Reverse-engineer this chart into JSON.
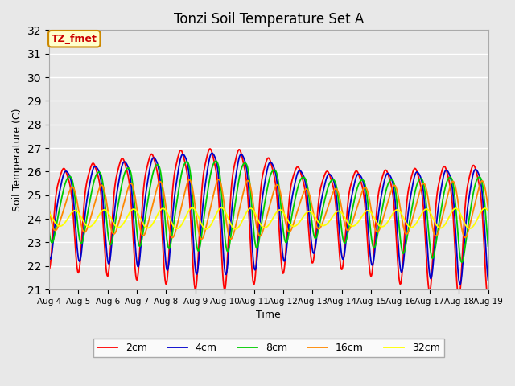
{
  "title": "Tonzi Soil Temperature Set A",
  "xlabel": "Time",
  "ylabel": "Soil Temperature (C)",
  "ylim": [
    21.0,
    32.0
  ],
  "yticks": [
    21.0,
    22.0,
    23.0,
    24.0,
    25.0,
    26.0,
    27.0,
    28.0,
    29.0,
    30.0,
    31.0,
    32.0
  ],
  "xtick_labels": [
    "Aug 4",
    "Aug 5",
    "Aug 6",
    "Aug 7",
    "Aug 8",
    "Aug 9",
    "Aug 10",
    "Aug 11",
    "Aug 12",
    "Aug 13",
    "Aug 14",
    "Aug 15",
    "Aug 16",
    "Aug 17",
    "Aug 18",
    "Aug 19"
  ],
  "series_colors": [
    "#ff0000",
    "#0000cc",
    "#00cc00",
    "#ff8800",
    "#ffff00"
  ],
  "series_labels": [
    "2cm",
    "4cm",
    "8cm",
    "16cm",
    "32cm"
  ],
  "annotation_text": "TZ_fmet",
  "annotation_color": "#cc0000",
  "annotation_bg": "#ffffcc",
  "annotation_border": "#cc8800",
  "bg_color": "#e8e8e8",
  "title_fontsize": 12,
  "legend_fontsize": 9,
  "start_day": 4,
  "end_day": 19,
  "n_points": 720
}
